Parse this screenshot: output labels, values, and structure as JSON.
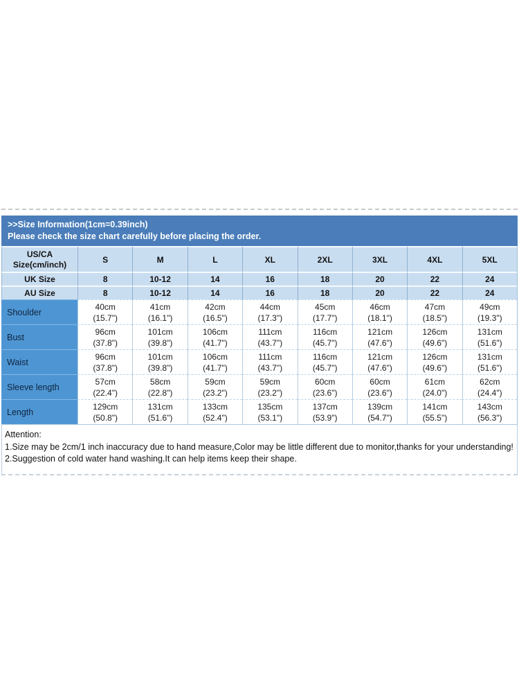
{
  "colors": {
    "header_bar_bg": "#4a7db9",
    "header_bar_text": "#ffffff",
    "size_row_bg": "#c9ddf0",
    "label_col_bg": "#4e96d3",
    "label_text": "#0f2440",
    "cell_text": "#1c1c1c",
    "grid_border": "#9fbdd8"
  },
  "header": {
    "line1": ">>Size Information(1cm=0.39inch)",
    "line2": "Please check the size chart carefully before placing the order."
  },
  "size_table": {
    "corner": [
      "US/CA",
      "Size(cm/inch)"
    ],
    "sizes": [
      "S",
      "M",
      "L",
      "XL",
      "2XL",
      "3XL",
      "4XL",
      "5XL"
    ],
    "region_rows": [
      {
        "label": "UK Size",
        "values": [
          "8",
          "10-12",
          "14",
          "16",
          "18",
          "20",
          "22",
          "24"
        ]
      },
      {
        "label": "AU Size",
        "values": [
          "8",
          "10-12",
          "14",
          "16",
          "18",
          "20",
          "22",
          "24"
        ]
      }
    ],
    "measurement_rows": [
      {
        "label": "Shoulder",
        "cm": [
          "40cm",
          "41cm",
          "42cm",
          "44cm",
          "45cm",
          "46cm",
          "47cm",
          "49cm"
        ],
        "inch": [
          "(15.7\")",
          "(16.1\")",
          "(16.5\")",
          "(17.3\")",
          "(17.7\")",
          "(18.1\")",
          "(18.5\")",
          "(19.3\")"
        ]
      },
      {
        "label": "Bust",
        "cm": [
          "96cm",
          "101cm",
          "106cm",
          "111cm",
          "116cm",
          "121cm",
          "126cm",
          "131cm"
        ],
        "inch": [
          "(37.8\")",
          "(39.8\")",
          "(41.7\")",
          "(43.7\")",
          "(45.7\")",
          "(47.6\")",
          "(49.6\")",
          "(51.6\")"
        ]
      },
      {
        "label": "Waist",
        "cm": [
          "96cm",
          "101cm",
          "106cm",
          "111cm",
          "116cm",
          "121cm",
          "126cm",
          "131cm"
        ],
        "inch": [
          "(37.8\")",
          "(39.8\")",
          "(41.7\")",
          "(43.7\")",
          "(45.7\")",
          "(47.6\")",
          "(49.6\")",
          "(51.6\")"
        ]
      },
      {
        "label": "Sleeve length",
        "cm": [
          "57cm",
          "58cm",
          "59cm",
          "59cm",
          "60cm",
          "60cm",
          "61cm",
          "62cm"
        ],
        "inch": [
          "(22.4\")",
          "(22.8\")",
          "(23.2\")",
          "(23.2\")",
          "(23.6\")",
          "(23.6\")",
          "(24.0\")",
          "(24.4\")"
        ]
      },
      {
        "label": "Length",
        "cm": [
          "129cm",
          "131cm",
          "133cm",
          "135cm",
          "137cm",
          "139cm",
          "141cm",
          "143cm"
        ],
        "inch": [
          "(50.8\")",
          "(51.6\")",
          "(52.4\")",
          "(53.1\")",
          "(53.9\")",
          "(54.7\")",
          "(55.5\")",
          "(56.3\")"
        ]
      }
    ]
  },
  "attention": {
    "title": "Attention:",
    "lines": [
      "1.Size may be 2cm/1 inch inaccuracy due to hand measure,Color may be little different due to monitor,thanks for your understanding!",
      "2.Suggestion of cold water hand washing.It can help items keep their shape."
    ]
  }
}
